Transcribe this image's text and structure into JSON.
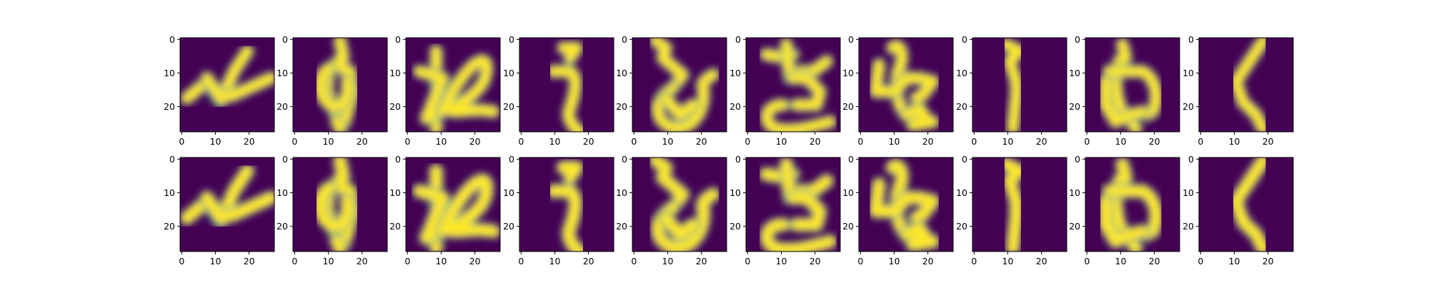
{
  "figure": {
    "rows": 2,
    "columns": 10,
    "row_roles": [
      "original",
      "reconstruction"
    ],
    "colormap": "viridis",
    "colors": {
      "background_dark": "#440154",
      "stroke_mid": "#21918c",
      "stroke_bright": "#fde725",
      "axis": "#000000"
    },
    "axes": {
      "x_ticks": [
        "0",
        "10",
        "20"
      ],
      "y_ticks": [
        "0",
        "10",
        "20"
      ]
    },
    "panels": [
      {
        "glyph": "ん"
      },
      {
        "glyph": "ゆ"
      },
      {
        "glyph": "れ"
      },
      {
        "glyph": "う"
      },
      {
        "glyph": "ろ"
      },
      {
        "glyph": "さ"
      },
      {
        "glyph": "も"
      },
      {
        "glyph": "う"
      },
      {
        "glyph": "め"
      },
      {
        "glyph": "く"
      }
    ]
  }
}
